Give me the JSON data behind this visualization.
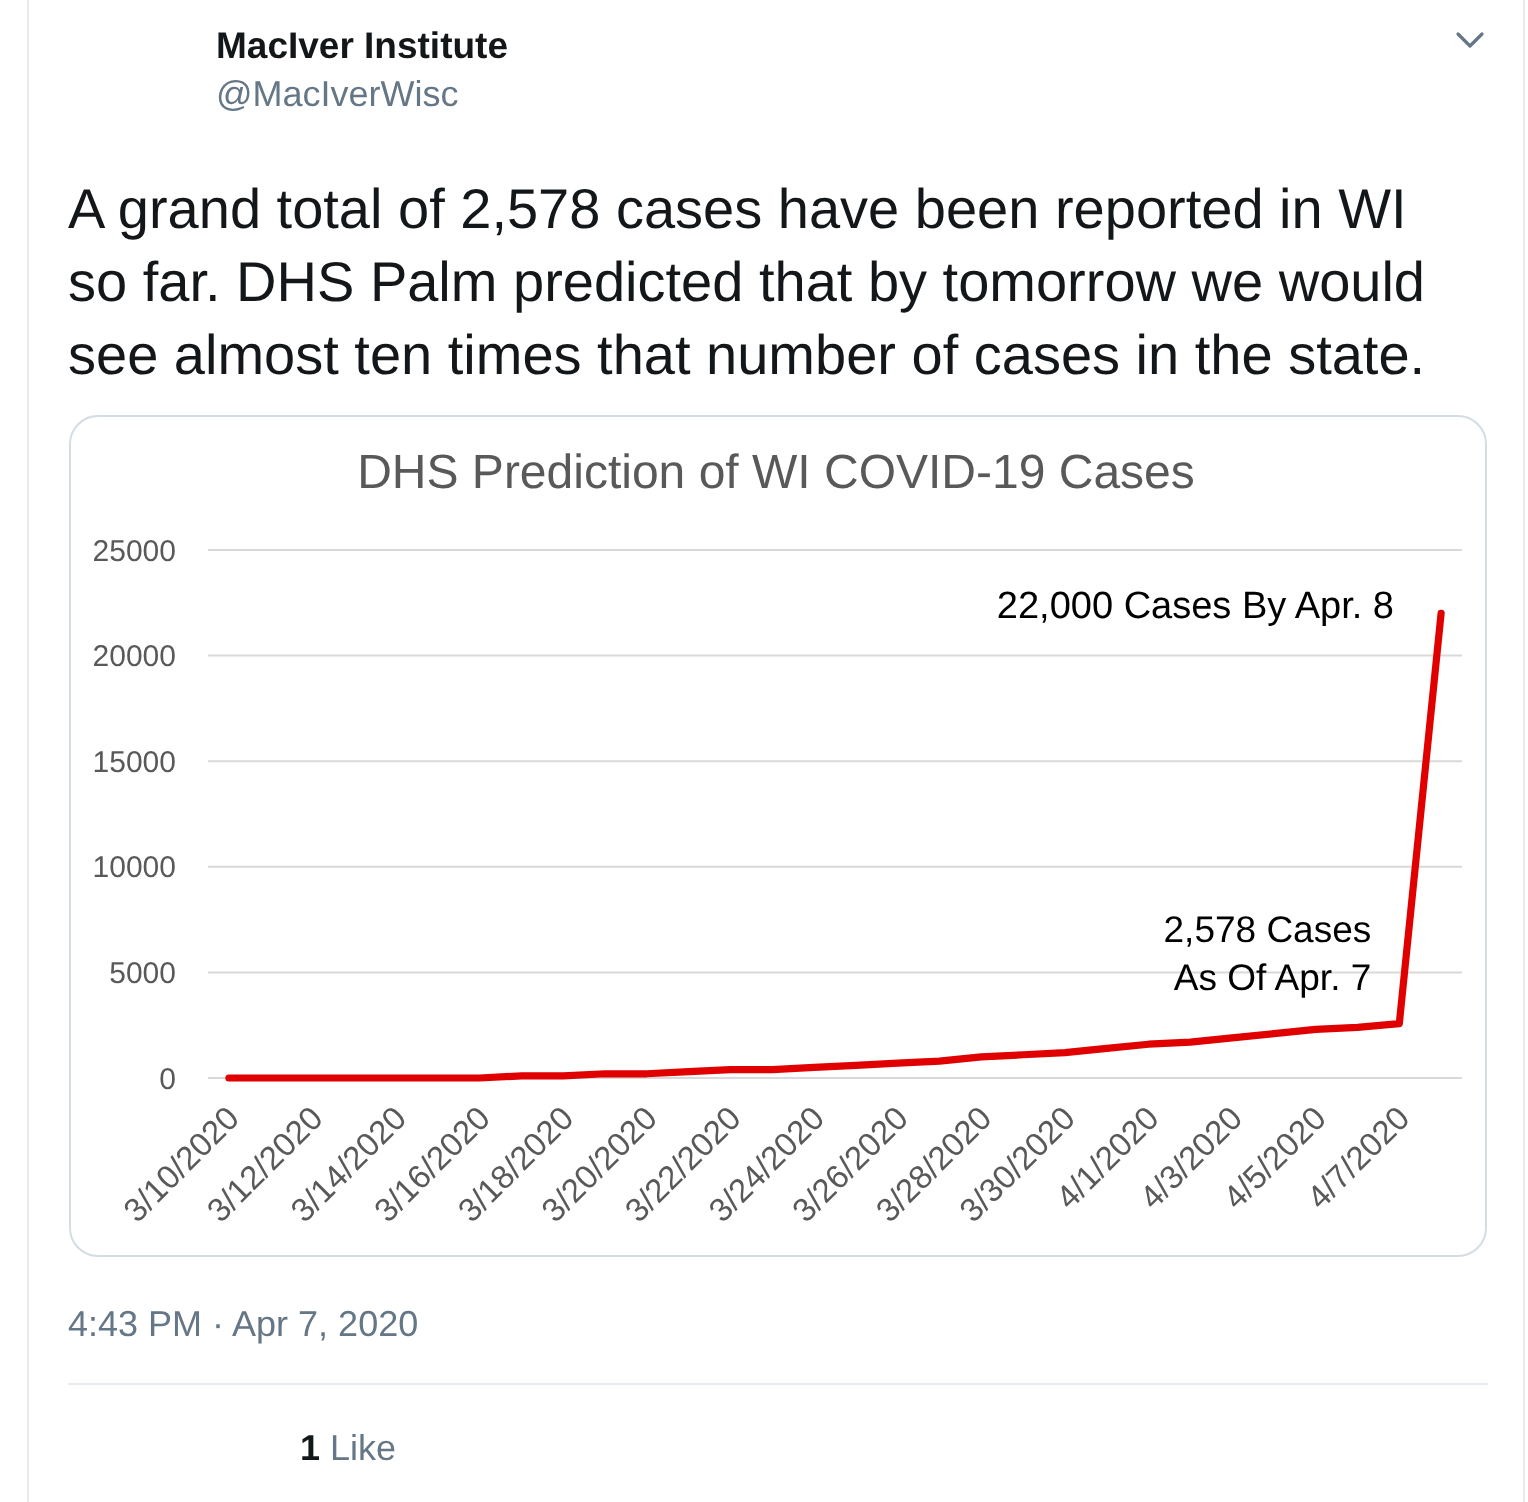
{
  "chart_data": {
    "type": "line",
    "title": "DHS Prediction of WI COVID-19 Cases",
    "categories": [
      "3/10/2020",
      null,
      "3/12/2020",
      null,
      "3/14/2020",
      null,
      "3/16/2020",
      null,
      "3/18/2020",
      null,
      "3/20/2020",
      null,
      "3/22/2020",
      null,
      "3/24/2020",
      null,
      "3/26/2020",
      null,
      "3/28/2020",
      null,
      "3/30/2020",
      null,
      "4/1/2020",
      null,
      "4/3/2020",
      null,
      "4/5/2020",
      null,
      "4/7/2020",
      null
    ],
    "series": [
      {
        "color": "#e00000",
        "values": [
          0,
          0,
          0,
          0,
          0,
          0,
          0,
          100,
          100,
          200,
          200,
          300,
          400,
          400,
          500,
          600,
          700,
          800,
          1000,
          1100,
          1200,
          1400,
          1600,
          1700,
          1900,
          2100,
          2300,
          2400,
          2578,
          22000
        ]
      }
    ],
    "ylim": [
      0,
      25000
    ],
    "yticks": [
      0,
      5000,
      10000,
      15000,
      20000,
      25000
    ],
    "grid": "y",
    "line_style": "solid",
    "annotations": [
      "MacIver Institute",
      "@MacIverWisc",
      "A grand total of 2,578 cases have been reported in WI so far. DHS Palm predicted that by tomorrow we would see almost ten times that number of cases in the state.",
      "22,000 Cases By Apr. 8",
      {
        "text": "2,578 Cases\nAs Of Apr. 7",
        "x": "4/7/2020",
        "y": 2578
      },
      "4:43 PM · Apr 7, 2020",
      "1 Like"
    ]
  }
}
